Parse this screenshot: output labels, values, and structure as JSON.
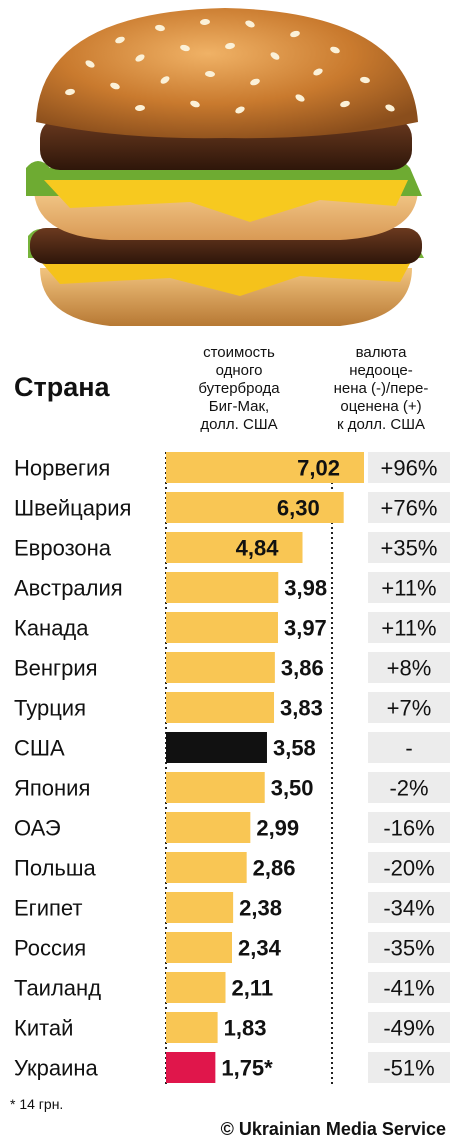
{
  "header": {
    "country_label": "Страна",
    "price_column": "стоимость\nодного\nбутерброда\nБиг-Мак,\nдолл. США",
    "valuation_column": "валюта\nнедооце-\nнена (-)/пере-\nоценена (+)\nк долл. США"
  },
  "colors": {
    "bar": "#f9c654",
    "usa": "#111111",
    "ukraine": "#e0164b",
    "pct_background": "#ececec"
  },
  "chart_data": {
    "type": "bar",
    "orientation": "horizontal",
    "categories": [
      "Норвегия",
      "Швейцария",
      "Еврозона",
      "Австралия",
      "Канада",
      "Венгрия",
      "Турция",
      "США",
      "Япония",
      "ОАЭ",
      "Польша",
      "Египет",
      "Россия",
      "Таиланд",
      "Китай",
      "Украина"
    ],
    "series": [
      {
        "values": [
          7.02,
          6.3,
          4.84,
          3.98,
          3.97,
          3.86,
          3.83,
          3.58,
          3.5,
          2.99,
          2.86,
          2.38,
          2.34,
          2.11,
          1.83,
          1.75
        ],
        "labels": [
          "7,02",
          "6,30",
          "4,84",
          "3,98",
          "3,97",
          "3,86",
          "3,83",
          "3,58",
          "3,50",
          "2,99",
          "2,86",
          "2,38",
          "2,34",
          "2,11",
          "1,83",
          "1,75*"
        ]
      }
    ],
    "valuation": [
      "+96%",
      "+76%",
      "+35%",
      "+11%",
      "+11%",
      "+8%",
      "+7%",
      "-",
      "-2%",
      "-16%",
      "-20%",
      "-34%",
      "-35%",
      "-41%",
      "-49%",
      "-51%"
    ],
    "highlight": {
      "США": "usa",
      "Украина": "ukraine"
    },
    "xlim": [
      0,
      7.02
    ]
  },
  "footnote": "* 14 грн.",
  "credit": "© Ukrainian Media Service"
}
